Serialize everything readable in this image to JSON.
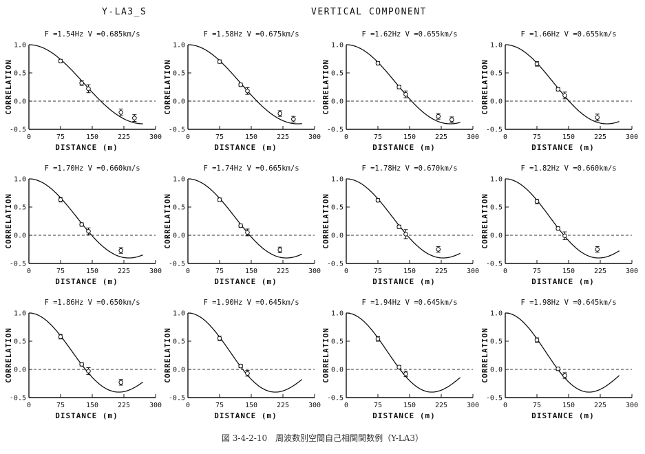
{
  "header": {
    "site": "Y-LA3_S",
    "component": "VERTICAL COMPONENT"
  },
  "caption": "図 3-4-2-10　周波数別空間自己相関関数例（Y-LA3）",
  "chart_data": [
    {
      "type": "scatter",
      "title": "F =1.54Hz  V =0.685km/s",
      "xlabel": "DISTANCE (m)",
      "ylabel": "CORRELATION",
      "xlim": [
        0,
        300
      ],
      "ylim": [
        -0.5,
        1.0
      ],
      "xticks": [
        0,
        75,
        150,
        225,
        300
      ],
      "yticks": [
        1.0,
        0.5,
        0.0,
        -0.5
      ],
      "ytick_labels": [
        "1.0",
        "0.5",
        "0.0",
        "-0.5"
      ],
      "freq_hz": 1.54,
      "velocity_kms": 0.685,
      "fit_curve": "J0(2*pi*f*r/V)",
      "curve_xmax": 270,
      "reference_line_y": 0,
      "points": [
        {
          "x": 75,
          "y": 0.71,
          "err": 0.03
        },
        {
          "x": 125,
          "y": 0.32,
          "err": 0.04
        },
        {
          "x": 141,
          "y": 0.22,
          "err": 0.07
        },
        {
          "x": 218,
          "y": -0.2,
          "err": 0.06
        },
        {
          "x": 250,
          "y": -0.3,
          "err": 0.06
        }
      ]
    },
    {
      "type": "scatter",
      "title": "F =1.58Hz  V =0.675km/s",
      "xlabel": "DISTANCE (m)",
      "ylabel": "CORRELATION",
      "xlim": [
        0,
        300
      ],
      "ylim": [
        -0.5,
        1.0
      ],
      "xticks": [
        0,
        75,
        150,
        225,
        300
      ],
      "yticks": [
        1.0,
        0.5,
        0.0,
        -0.5
      ],
      "ytick_labels": [
        "1.0",
        "0.5",
        "0.0",
        "-0.5"
      ],
      "freq_hz": 1.58,
      "velocity_kms": 0.675,
      "fit_curve": "J0(2*pi*f*r/V)",
      "curve_xmax": 270,
      "reference_line_y": 0,
      "points": [
        {
          "x": 75,
          "y": 0.7,
          "err": 0.03
        },
        {
          "x": 125,
          "y": 0.29,
          "err": 0.03
        },
        {
          "x": 141,
          "y": 0.18,
          "err": 0.06
        },
        {
          "x": 218,
          "y": -0.22,
          "err": 0.05
        },
        {
          "x": 250,
          "y": -0.32,
          "err": 0.05
        }
      ]
    },
    {
      "type": "scatter",
      "title": "F =1.62Hz  V =0.655km/s",
      "xlabel": "DISTANCE (m)",
      "ylabel": "CORRELATION",
      "xlim": [
        0,
        300
      ],
      "ylim": [
        -0.5,
        1.0
      ],
      "xticks": [
        0,
        75,
        150,
        225,
        300
      ],
      "yticks": [
        1.0,
        0.5,
        0.0,
        -0.5
      ],
      "ytick_labels": [
        "1.0",
        "0.5",
        "0.0",
        "-0.5"
      ],
      "freq_hz": 1.62,
      "velocity_kms": 0.655,
      "fit_curve": "J0(2*pi*f*r/V)",
      "curve_xmax": 270,
      "reference_line_y": 0,
      "points": [
        {
          "x": 75,
          "y": 0.67,
          "err": 0.03
        },
        {
          "x": 125,
          "y": 0.25,
          "err": 0.03
        },
        {
          "x": 141,
          "y": 0.12,
          "err": 0.06
        },
        {
          "x": 218,
          "y": -0.27,
          "err": 0.05
        },
        {
          "x": 250,
          "y": -0.33,
          "err": 0.05
        }
      ]
    },
    {
      "type": "scatter",
      "title": "F =1.66Hz  V =0.655km/s",
      "xlabel": "DISTANCE (m)",
      "ylabel": "CORRELATION",
      "xlim": [
        0,
        300
      ],
      "ylim": [
        -0.5,
        1.0
      ],
      "xticks": [
        0,
        75,
        150,
        225,
        300
      ],
      "yticks": [
        1.0,
        0.5,
        0.0,
        -0.5
      ],
      "ytick_labels": [
        "1.0",
        "0.5",
        "0.0",
        "-0.5"
      ],
      "freq_hz": 1.66,
      "velocity_kms": 0.655,
      "fit_curve": "J0(2*pi*f*r/V)",
      "curve_xmax": 270,
      "reference_line_y": 0,
      "points": [
        {
          "x": 75,
          "y": 0.66,
          "err": 0.04
        },
        {
          "x": 125,
          "y": 0.21,
          "err": 0.03
        },
        {
          "x": 141,
          "y": 0.1,
          "err": 0.06
        },
        {
          "x": 218,
          "y": -0.29,
          "err": 0.06
        }
      ]
    },
    {
      "type": "scatter",
      "title": "F =1.70Hz  V =0.660km/s",
      "xlabel": "DISTANCE (m)",
      "ylabel": "CORRELATION",
      "xlim": [
        0,
        300
      ],
      "ylim": [
        -0.5,
        1.0
      ],
      "xticks": [
        0,
        75,
        150,
        225,
        300
      ],
      "yticks": [
        1.0,
        0.5,
        0.0,
        -0.5
      ],
      "ytick_labels": [
        "1.0",
        "0.5",
        "0.0",
        "-0.5"
      ],
      "freq_hz": 1.7,
      "velocity_kms": 0.66,
      "fit_curve": "J0(2*pi*f*r/V)",
      "curve_xmax": 270,
      "reference_line_y": 0,
      "points": [
        {
          "x": 75,
          "y": 0.63,
          "err": 0.04
        },
        {
          "x": 125,
          "y": 0.19,
          "err": 0.03
        },
        {
          "x": 141,
          "y": 0.07,
          "err": 0.06
        },
        {
          "x": 218,
          "y": -0.27,
          "err": 0.05
        }
      ]
    },
    {
      "type": "scatter",
      "title": "F =1.74Hz  V =0.665km/s",
      "xlabel": "DISTANCE (m)",
      "ylabel": "CORRELATION",
      "xlim": [
        0,
        300
      ],
      "ylim": [
        -0.5,
        1.0
      ],
      "xticks": [
        0,
        75,
        150,
        225,
        300
      ],
      "yticks": [
        1.0,
        0.5,
        0.0,
        -0.5
      ],
      "ytick_labels": [
        "1.0",
        "0.5",
        "0.0",
        "-0.5"
      ],
      "freq_hz": 1.74,
      "velocity_kms": 0.665,
      "fit_curve": "J0(2*pi*f*r/V)",
      "curve_xmax": 270,
      "reference_line_y": 0,
      "points": [
        {
          "x": 75,
          "y": 0.63,
          "err": 0.03
        },
        {
          "x": 125,
          "y": 0.17,
          "err": 0.03
        },
        {
          "x": 141,
          "y": 0.05,
          "err": 0.06
        },
        {
          "x": 218,
          "y": -0.26,
          "err": 0.05
        }
      ]
    },
    {
      "type": "scatter",
      "title": "F =1.78Hz  V =0.670km/s",
      "xlabel": "DISTANCE (m)",
      "ylabel": "CORRELATION",
      "xlim": [
        0,
        300
      ],
      "ylim": [
        -0.5,
        1.0
      ],
      "xticks": [
        0,
        75,
        150,
        225,
        300
      ],
      "yticks": [
        1.0,
        0.5,
        0.0,
        -0.5
      ],
      "ytick_labels": [
        "1.0",
        "0.5",
        "0.0",
        "-0.5"
      ],
      "freq_hz": 1.78,
      "velocity_kms": 0.67,
      "fit_curve": "J0(2*pi*f*r/V)",
      "curve_xmax": 270,
      "reference_line_y": 0,
      "points": [
        {
          "x": 75,
          "y": 0.62,
          "err": 0.03
        },
        {
          "x": 125,
          "y": 0.15,
          "err": 0.03
        },
        {
          "x": 141,
          "y": 0.02,
          "err": 0.08
        },
        {
          "x": 218,
          "y": -0.25,
          "err": 0.05
        }
      ]
    },
    {
      "type": "scatter",
      "title": "F =1.82Hz  V =0.660km/s",
      "xlabel": "DISTANCE (m)",
      "ylabel": "CORRELATION",
      "xlim": [
        0,
        300
      ],
      "ylim": [
        -0.5,
        1.0
      ],
      "xticks": [
        0,
        75,
        150,
        225,
        300
      ],
      "yticks": [
        1.0,
        0.5,
        0.0,
        -0.5
      ],
      "ytick_labels": [
        "1.0",
        "0.5",
        "0.0",
        "-0.5"
      ],
      "freq_hz": 1.82,
      "velocity_kms": 0.66,
      "fit_curve": "J0(2*pi*f*r/V)",
      "curve_xmax": 270,
      "reference_line_y": 0,
      "points": [
        {
          "x": 75,
          "y": 0.6,
          "err": 0.04
        },
        {
          "x": 125,
          "y": 0.12,
          "err": 0.03
        },
        {
          "x": 141,
          "y": -0.01,
          "err": 0.07
        },
        {
          "x": 218,
          "y": -0.25,
          "err": 0.05
        }
      ]
    },
    {
      "type": "scatter",
      "title": "F =1.86Hz  V =0.650km/s",
      "xlabel": "DISTANCE (m)",
      "ylabel": "CORRELATION",
      "xlim": [
        0,
        300
      ],
      "ylim": [
        -0.5,
        1.0
      ],
      "xticks": [
        0,
        75,
        150,
        225,
        300
      ],
      "yticks": [
        1.0,
        0.5,
        0.0,
        -0.5
      ],
      "ytick_labels": [
        "1.0",
        "0.5",
        "0.0",
        "-0.5"
      ],
      "freq_hz": 1.86,
      "velocity_kms": 0.65,
      "fit_curve": "J0(2*pi*f*r/V)",
      "curve_xmax": 270,
      "reference_line_y": 0,
      "points": [
        {
          "x": 75,
          "y": 0.58,
          "err": 0.04
        },
        {
          "x": 125,
          "y": 0.09,
          "err": 0.03
        },
        {
          "x": 141,
          "y": -0.03,
          "err": 0.06
        },
        {
          "x": 218,
          "y": -0.23,
          "err": 0.05
        }
      ]
    },
    {
      "type": "scatter",
      "title": "F =1.90Hz  V =0.645km/s",
      "xlabel": "DISTANCE (m)",
      "ylabel": "CORRELATION",
      "xlim": [
        0,
        300
      ],
      "ylim": [
        -0.5,
        1.0
      ],
      "xticks": [
        0,
        75,
        150,
        225,
        300
      ],
      "yticks": [
        1.0,
        0.5,
        0.0,
        -0.5
      ],
      "ytick_labels": [
        "1.0",
        "0.5",
        "0.0",
        "-0.5"
      ],
      "freq_hz": 1.9,
      "velocity_kms": 0.645,
      "fit_curve": "J0(2*pi*f*r/V)",
      "curve_xmax": 270,
      "reference_line_y": 0,
      "points": [
        {
          "x": 75,
          "y": 0.55,
          "err": 0.04
        },
        {
          "x": 125,
          "y": 0.06,
          "err": 0.03
        },
        {
          "x": 141,
          "y": -0.07,
          "err": 0.05
        }
      ]
    },
    {
      "type": "scatter",
      "title": "F =1.94Hz  V =0.645km/s",
      "xlabel": "DISTANCE (m)",
      "ylabel": "CORRELATION",
      "xlim": [
        0,
        300
      ],
      "ylim": [
        -0.5,
        1.0
      ],
      "xticks": [
        0,
        75,
        150,
        225,
        300
      ],
      "yticks": [
        1.0,
        0.5,
        0.0,
        -0.5
      ],
      "ytick_labels": [
        "1.0",
        "0.5",
        "0.0",
        "-0.5"
      ],
      "freq_hz": 1.94,
      "velocity_kms": 0.645,
      "fit_curve": "J0(2*pi*f*r/V)",
      "curve_xmax": 270,
      "reference_line_y": 0,
      "points": [
        {
          "x": 75,
          "y": 0.54,
          "err": 0.04
        },
        {
          "x": 125,
          "y": 0.04,
          "err": 0.03
        },
        {
          "x": 141,
          "y": -0.08,
          "err": 0.05
        }
      ]
    },
    {
      "type": "scatter",
      "title": "F =1.98Hz  V =0.645km/s",
      "xlabel": "DISTANCE (m)",
      "ylabel": "CORRELATION",
      "xlim": [
        0,
        300
      ],
      "ylim": [
        -0.5,
        1.0
      ],
      "xticks": [
        0,
        75,
        150,
        225,
        300
      ],
      "yticks": [
        1.0,
        0.5,
        0.0,
        -0.5
      ],
      "ytick_labels": [
        "1.0",
        "0.5",
        "0.0",
        "-0.5"
      ],
      "freq_hz": 1.98,
      "velocity_kms": 0.645,
      "fit_curve": "J0(2*pi*f*r/V)",
      "curve_xmax": 270,
      "reference_line_y": 0,
      "points": [
        {
          "x": 75,
          "y": 0.52,
          "err": 0.04
        },
        {
          "x": 125,
          "y": 0.01,
          "err": 0.03
        },
        {
          "x": 141,
          "y": -0.11,
          "err": 0.05
        }
      ]
    }
  ]
}
